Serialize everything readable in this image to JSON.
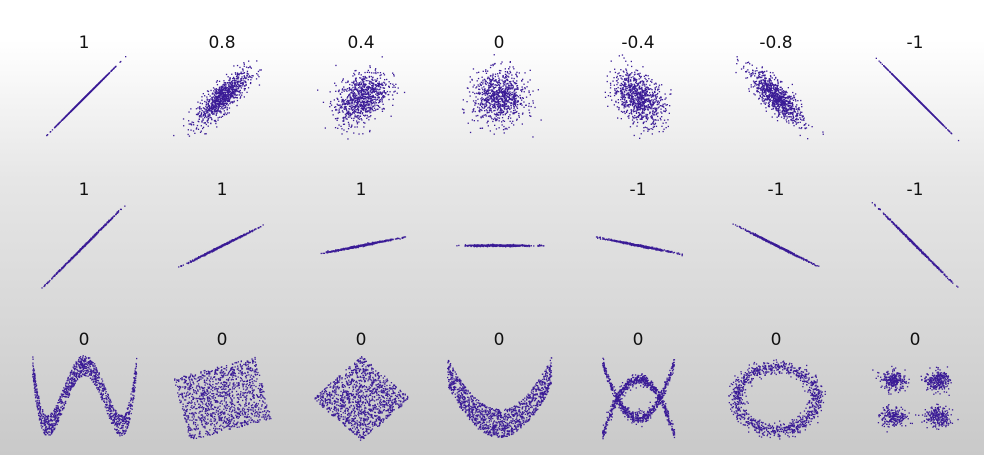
{
  "chart_data": [
    {
      "type": "scatter",
      "rows": 3,
      "cols": 7,
      "point_color": "#3a1b96",
      "panels": [
        {
          "coefficient": "1",
          "pattern": "linear",
          "correlation": 1
        },
        {
          "coefficient": "0.8",
          "pattern": "linear",
          "correlation": 0.8
        },
        {
          "coefficient": "0.4",
          "pattern": "linear",
          "correlation": 0.4
        },
        {
          "coefficient": "0",
          "pattern": "linear",
          "correlation": 0
        },
        {
          "coefficient": "-0.4",
          "pattern": "linear",
          "correlation": -0.4
        },
        {
          "coefficient": "-0.8",
          "pattern": "linear",
          "correlation": -0.8
        },
        {
          "coefficient": "-1",
          "pattern": "linear",
          "correlation": -1
        },
        {
          "coefficient": "1",
          "pattern": "slope",
          "slope": 1
        },
        {
          "coefficient": "1",
          "pattern": "slope",
          "slope": 0.5
        },
        {
          "coefficient": "1",
          "pattern": "slope",
          "slope": 0.2
        },
        {
          "coefficient": "",
          "pattern": "slope",
          "slope": 0
        },
        {
          "coefficient": "-1",
          "pattern": "slope",
          "slope": -0.2
        },
        {
          "coefficient": "-1",
          "pattern": "slope",
          "slope": -0.5
        },
        {
          "coefficient": "-1",
          "pattern": "slope",
          "slope": -1
        },
        {
          "coefficient": "0",
          "pattern": "wave"
        },
        {
          "coefficient": "0",
          "pattern": "rotated-square"
        },
        {
          "coefficient": "0",
          "pattern": "diamond"
        },
        {
          "coefficient": "0",
          "pattern": "parabola"
        },
        {
          "coefficient": "0",
          "pattern": "x-shape"
        },
        {
          "coefficient": "0",
          "pattern": "ring"
        },
        {
          "coefficient": "0",
          "pattern": "four-clusters"
        }
      ]
    }
  ]
}
